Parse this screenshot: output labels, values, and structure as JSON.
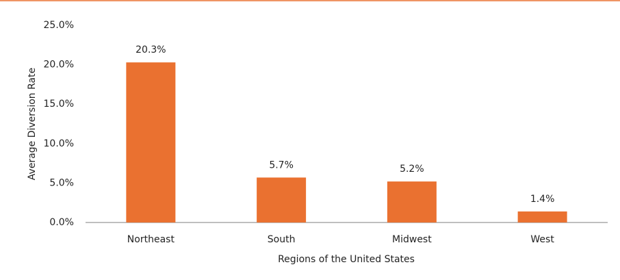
{
  "chart_data": {
    "type": "bar",
    "x_label": "Regions of the United States",
    "y_label": "Average Diversion Rate",
    "categories": [
      "Northeast",
      "South",
      "Midwest",
      "West"
    ],
    "values": [
      20.3,
      5.7,
      5.2,
      1.4
    ],
    "value_labels": [
      "20.3%",
      "5.7%",
      "5.2%",
      "1.4%"
    ],
    "color": "#ea7130",
    "ylim": [
      0,
      25
    ],
    "yticks": [
      {
        "value": 0,
        "label": "0.0%"
      },
      {
        "value": 5,
        "label": "5.0%"
      },
      {
        "value": 10,
        "label": "10.0%"
      },
      {
        "value": 15,
        "label": "15.0%"
      },
      {
        "value": 20,
        "label": "20.0%"
      },
      {
        "value": 25,
        "label": "25.0%"
      }
    ],
    "grid": false
  }
}
